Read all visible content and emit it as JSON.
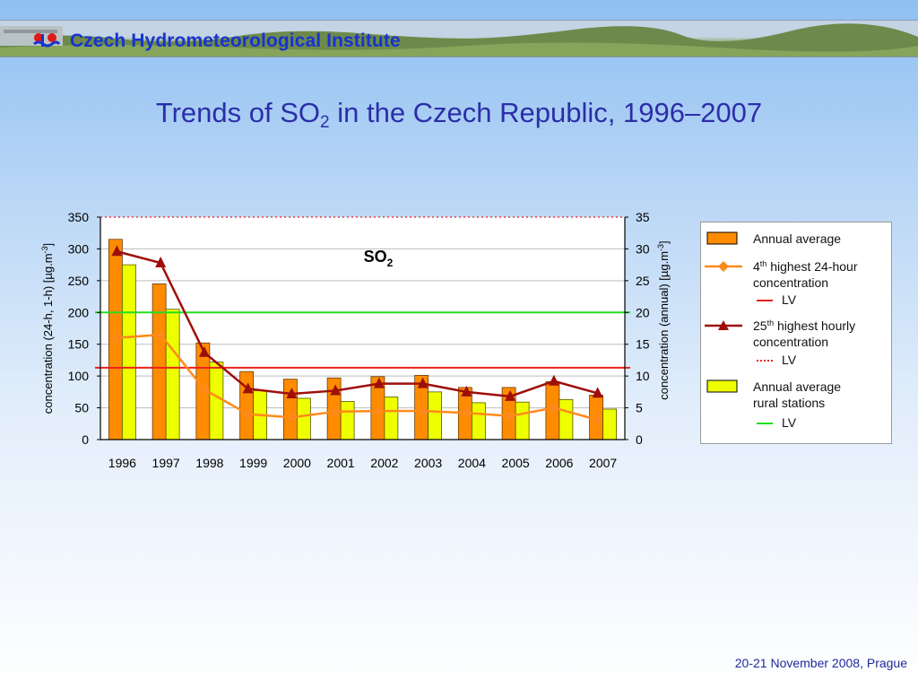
{
  "header": {
    "org_name": "Czech Hydrometeorological Institute"
  },
  "slide": {
    "title_pre": "Trends of SO",
    "title_sub": "2",
    "title_post": " in the Czech Republic, 1996–2007",
    "footer": "20-21 November 2008, Prague"
  },
  "chart_data": {
    "type": "bar",
    "title": "SO2",
    "title_main": "SO",
    "title_sub": "2",
    "categories": [
      "1996",
      "1997",
      "1998",
      "1999",
      "2000",
      "2001",
      "2002",
      "2003",
      "2004",
      "2005",
      "2006",
      "2007"
    ],
    "ylabel_left": "concentration (24-h, 1-h) [µg.m-3]",
    "ylabel_left_main": "concentration (24-h, 1-h) [µg.m",
    "ylabel_left_sup": "-3",
    "ylabel_left_end": "]",
    "ylabel_right": "concentration (annual) [µg.m-3]",
    "ylabel_right_main": "concentration (annual) [µg.m",
    "ylabel_right_sup": "-3",
    "ylabel_right_end": "]",
    "ylim_left": [
      0,
      350
    ],
    "ylim_right": [
      0,
      35
    ],
    "yticks_left": [
      "0",
      "50",
      "100",
      "150",
      "200",
      "250",
      "300",
      "350"
    ],
    "yticks_right": [
      "0",
      "5",
      "10",
      "15",
      "20",
      "25",
      "30",
      "35"
    ],
    "grid": true,
    "legend_position": "right",
    "series": [
      {
        "name": "Annual average",
        "kind": "bar",
        "axis": "right",
        "color": "#ff8c00",
        "values": [
          31.5,
          24.5,
          15.2,
          10.7,
          9.5,
          9.7,
          9.9,
          10.1,
          8.2,
          8.2,
          9.1,
          7.0
        ]
      },
      {
        "name": "Annual average rural stations",
        "kind": "bar",
        "axis": "right",
        "color": "#eeff00",
        "values": [
          27.5,
          20.5,
          12.2,
          7.7,
          6.5,
          6.0,
          6.7,
          7.5,
          5.8,
          5.9,
          6.3,
          4.8
        ]
      },
      {
        "name": "4th highest 24-hour concentration",
        "kind": "line",
        "axis": "left",
        "color": "#ff8a1a",
        "marker": "diamond",
        "values": [
          160,
          165,
          79,
          40,
          35,
          44,
          45,
          45,
          42,
          37,
          50,
          31
        ]
      },
      {
        "name": "25th highest hourly concentration",
        "kind": "line",
        "axis": "left",
        "color": "#9e0f0a",
        "marker": "triangle",
        "values": [
          296,
          278,
          137,
          80,
          72,
          77,
          88,
          88,
          75,
          68,
          92,
          73
        ]
      }
    ],
    "limit_values": [
      {
        "name": "LV",
        "for": "4th highest 24-hour concentration",
        "axis": "left",
        "value": 113,
        "color": "#e8221e",
        "style": "solid"
      },
      {
        "name": "LV",
        "for": "25th highest hourly concentration",
        "axis": "left",
        "value": 350,
        "color": "#e8221e",
        "style": "dotted"
      },
      {
        "name": "LV",
        "for": "Annual average rural stations",
        "axis": "right",
        "value": 20,
        "color": "#22dd22",
        "style": "solid"
      }
    ]
  },
  "legend": {
    "annual_average": "Annual average",
    "h24_pre": "4",
    "h24_sup": "th",
    "h24_post": " highest 24-hour",
    "h24_line2": "concentration",
    "lv": "LV",
    "hourly_pre": "25",
    "hourly_sup": "th",
    "hourly_post": " highest hourly",
    "hourly_line2": "concentration",
    "rural_line1": "Annual average",
    "rural_line2": "rural stations"
  }
}
